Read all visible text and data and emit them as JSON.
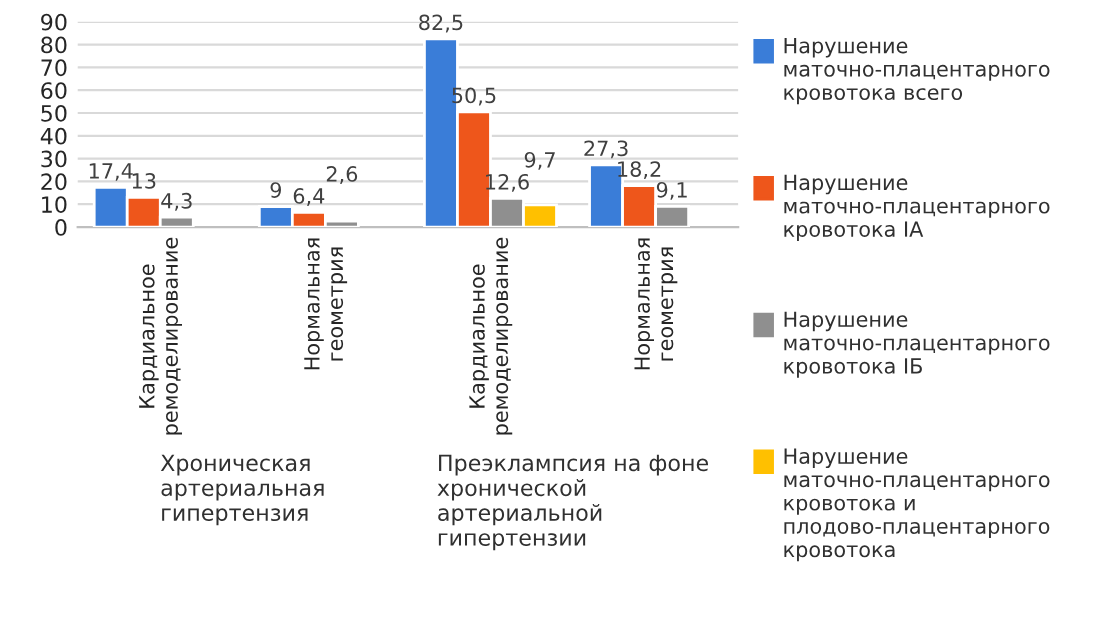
{
  "chart_data": {
    "type": "bar",
    "categories": [
      "Кардиальное ремоделирование",
      "Нормальная геометрия",
      "Кардиальное ремоделирование",
      "Нормальная геометрия"
    ],
    "series": [
      {
        "name": "Нарушение маточно-плацентарного кровотока всего",
        "color": "#3a7dd8",
        "values": [
          17.4,
          9,
          82.5,
          27.3
        ],
        "value_labels": [
          "17,4",
          "9",
          "82,5",
          "27,3"
        ]
      },
      {
        "name": "Нарушение маточно-плацентарного кровотока IA",
        "color": "#ee561b",
        "values": [
          13,
          6.4,
          50.5,
          18.2
        ],
        "value_labels": [
          "13",
          "6,4",
          "50,5",
          "18,2"
        ]
      },
      {
        "name": "Нарушение маточно-плацентарного кровотока IБ",
        "color": "#8f8f8f",
        "values": [
          4.3,
          2.6,
          12.6,
          9.1
        ],
        "value_labels": [
          "4,3",
          "2,6",
          "12,6",
          "9,1"
        ]
      },
      {
        "name": "Нарушение маточно-плацентарного кровотока и плодово-плацентарного кровотока",
        "color": "#ffc000",
        "values": [
          null,
          null,
          9.7,
          null
        ],
        "value_labels": [
          null,
          null,
          "9,7",
          null
        ]
      }
    ],
    "annotations": [
      "Хроническая артериальная гипертензия",
      "Преэклампсия на фоне хронической артериальной гипертензии"
    ],
    "ylim": [
      0,
      90
    ],
    "yticks": [
      0,
      10,
      20,
      30,
      40,
      50,
      60,
      70,
      80,
      90
    ],
    "grid": "y",
    "legend": "right"
  }
}
